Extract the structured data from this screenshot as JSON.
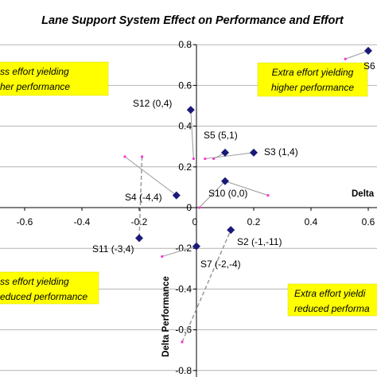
{
  "chart_data": {
    "type": "scatter",
    "title": "Lane Support System Effect on Performance and Effort",
    "xlabel": "Delta",
    "ylabel": "Delta Performance",
    "xlim": [
      -0.6,
      0.6
    ],
    "ylim": [
      -0.8,
      0.8
    ],
    "x_ticks": [
      "-0.6",
      "-0.4",
      "-0.2",
      "0",
      "0.2",
      "0.4",
      "0.6"
    ],
    "y_ticks": [
      "-0.8",
      "-0.6",
      "-0.4",
      "-0.2",
      "0",
      "0.2",
      "0.4",
      "0.6",
      "0.8"
    ],
    "grid": "horizontal",
    "colors": {
      "marker": "#1a1a7a",
      "pink": "#ff33cc",
      "connector": "#999999",
      "box": "#ffff00",
      "grid": "#b4b4b4"
    },
    "series": [
      {
        "points": [
          {
            "label": "S6",
            "x": 0.6,
            "y": 0.77,
            "ref_x": 0.52,
            "ref_y": 0.73,
            "connector": "solid"
          },
          {
            "label": "S12 (0,4)",
            "x": -0.02,
            "y": 0.48,
            "ref_x": -0.01,
            "ref_y": 0.24,
            "connector": "solid"
          },
          {
            "label": "S5 (5,1)",
            "x": 0.1,
            "y": 0.27,
            "ref_x": 0.06,
            "ref_y": 0.24,
            "connector": "solid"
          },
          {
            "label": "S3 (1,4)",
            "x": 0.2,
            "y": 0.27,
            "ref_x": 0.03,
            "ref_y": 0.24,
            "connector": "solid"
          },
          {
            "label": "S10 (0,0)",
            "x": 0.1,
            "y": 0.13,
            "ref_x": 0.01,
            "ref_y": 0.0,
            "connector": "solid"
          },
          {
            "label": "S4 (-4,4)",
            "x": -0.07,
            "y": 0.06,
            "ref_x": -0.25,
            "ref_y": 0.25,
            "connector": "solid"
          },
          {
            "label": "S11 (-3,4)",
            "x": -0.2,
            "y": -0.15,
            "ref_x": -0.19,
            "ref_y": 0.25,
            "connector": "dashed"
          },
          {
            "label": "S7 (-2,-4)",
            "x": 0.0,
            "y": -0.19,
            "ref_x": -0.12,
            "ref_y": -0.24,
            "connector": "solid"
          },
          {
            "label": "S2 (-1,-11)",
            "x": 0.12,
            "y": -0.11,
            "ref_x": -0.05,
            "ref_y": -0.66,
            "connector": "dashed"
          }
        ]
      }
    ],
    "extra_ref_points": [
      {
        "x": 0.25,
        "y": 0.06,
        "linked_to": "S10 (0,0)"
      }
    ],
    "annotations": [
      {
        "id": "ann-tl-1",
        "text": "ss effort yielding",
        "box": "tl"
      },
      {
        "id": "ann-tl-2",
        "text": "her performance",
        "box": "tl"
      },
      {
        "id": "ann-tr-1",
        "text": "Extra effort yielding",
        "box": "tr"
      },
      {
        "id": "ann-tr-2",
        "text": "higher performance",
        "box": "tr"
      },
      {
        "id": "ann-bl-1",
        "text": "ss effort yielding",
        "box": "bl"
      },
      {
        "id": "ann-bl-2",
        "text": "educed performance",
        "box": "bl"
      },
      {
        "id": "ann-br-1",
        "text": "Extra effort yieldi",
        "box": "br"
      },
      {
        "id": "ann-br-2",
        "text": "reduced performa",
        "box": "br"
      }
    ]
  }
}
